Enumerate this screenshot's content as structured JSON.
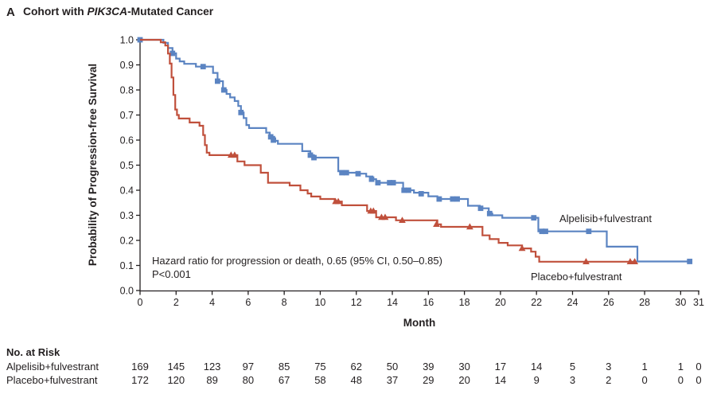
{
  "title": {
    "panel": "A",
    "part1": "Cohort with ",
    "part2_italic": "PIK3CA",
    "part3": "-Mutated Cancer"
  },
  "axes": {
    "y_label": "Probability of Progression-free Survival",
    "x_label": "Month",
    "y_ticks": [
      "1.0",
      "0.9",
      "0.8",
      "0.7",
      "0.6",
      "0.5",
      "0.4",
      "0.3",
      "0.2",
      "0.1",
      "0.0"
    ],
    "x_ticks": [
      0,
      2,
      4,
      6,
      8,
      10,
      12,
      14,
      16,
      18,
      20,
      22,
      24,
      26,
      28,
      30,
      31
    ]
  },
  "annotation": {
    "line1": "Hazard ratio for progression or death, 0.65 (95% CI, 0.50–0.85)",
    "line2": "P<0.001"
  },
  "chart_data": {
    "type": "line",
    "subtype": "kaplan-meier-step",
    "title": "Cohort with PIK3CA-Mutated Cancer",
    "xlabel": "Month",
    "ylabel": "Probability of Progression-free Survival",
    "xlim": [
      0,
      31
    ],
    "ylim": [
      0.0,
      1.0
    ],
    "grid": false,
    "series": [
      {
        "name": "Alpelisib+fulvestrant",
        "color": "#5b84c2",
        "marker": "square",
        "end_month": 30.55,
        "steps": [
          [
            0,
            1.0
          ],
          [
            1.3,
            0.988
          ],
          [
            1.55,
            0.967
          ],
          [
            1.8,
            0.946
          ],
          [
            2.0,
            0.925
          ],
          [
            2.2,
            0.914
          ],
          [
            2.45,
            0.904
          ],
          [
            3.1,
            0.893
          ],
          [
            4.05,
            0.868
          ],
          [
            4.3,
            0.835
          ],
          [
            4.6,
            0.8
          ],
          [
            4.8,
            0.784
          ],
          [
            5.0,
            0.77
          ],
          [
            5.25,
            0.756
          ],
          [
            5.45,
            0.736
          ],
          [
            5.6,
            0.71
          ],
          [
            5.75,
            0.688
          ],
          [
            5.9,
            0.66
          ],
          [
            6.05,
            0.648
          ],
          [
            7.0,
            0.63
          ],
          [
            7.2,
            0.613
          ],
          [
            7.45,
            0.597
          ],
          [
            7.65,
            0.585
          ],
          [
            9.0,
            0.556
          ],
          [
            9.45,
            0.54
          ],
          [
            9.65,
            0.53
          ],
          [
            11.0,
            0.476
          ],
          [
            11.35,
            0.47
          ],
          [
            12.1,
            0.466
          ],
          [
            12.55,
            0.455
          ],
          [
            12.9,
            0.444
          ],
          [
            13.1,
            0.43
          ],
          [
            14.6,
            0.4
          ],
          [
            15.2,
            0.39
          ],
          [
            16.0,
            0.376
          ],
          [
            16.5,
            0.365
          ],
          [
            18.2,
            0.338
          ],
          [
            18.85,
            0.328
          ],
          [
            19.35,
            0.307
          ],
          [
            19.55,
            0.3
          ],
          [
            20.1,
            0.29
          ],
          [
            22.1,
            0.236
          ],
          [
            25.9,
            0.175
          ],
          [
            27.6,
            0.116
          ]
        ],
        "censors": [
          [
            0,
            1.0
          ],
          [
            1.8,
            0.946
          ],
          [
            3.5,
            0.893
          ],
          [
            4.3,
            0.835
          ],
          [
            4.65,
            0.8
          ],
          [
            5.6,
            0.71
          ],
          [
            7.25,
            0.613
          ],
          [
            7.4,
            0.6
          ],
          [
            9.45,
            0.54
          ],
          [
            9.65,
            0.53
          ],
          [
            11.2,
            0.47
          ],
          [
            11.45,
            0.47
          ],
          [
            12.1,
            0.466
          ],
          [
            12.85,
            0.444
          ],
          [
            13.2,
            0.43
          ],
          [
            13.85,
            0.43
          ],
          [
            14.05,
            0.43
          ],
          [
            14.65,
            0.4
          ],
          [
            14.9,
            0.4
          ],
          [
            15.6,
            0.386
          ],
          [
            16.6,
            0.365
          ],
          [
            17.35,
            0.365
          ],
          [
            17.6,
            0.365
          ],
          [
            18.9,
            0.328
          ],
          [
            19.4,
            0.307
          ],
          [
            21.85,
            0.29
          ],
          [
            22.3,
            0.236
          ],
          [
            22.5,
            0.236
          ],
          [
            24.9,
            0.236
          ],
          [
            30.5,
            0.116
          ]
        ]
      },
      {
        "name": "Placebo+fulvestrant",
        "color": "#c0503c",
        "marker": "triangle",
        "end_month": 27.5,
        "steps": [
          [
            0,
            1.0
          ],
          [
            1.15,
            0.99
          ],
          [
            1.4,
            0.977
          ],
          [
            1.55,
            0.945
          ],
          [
            1.65,
            0.905
          ],
          [
            1.75,
            0.85
          ],
          [
            1.85,
            0.78
          ],
          [
            1.95,
            0.722
          ],
          [
            2.05,
            0.7
          ],
          [
            2.15,
            0.686
          ],
          [
            2.75,
            0.67
          ],
          [
            3.3,
            0.657
          ],
          [
            3.5,
            0.62
          ],
          [
            3.6,
            0.58
          ],
          [
            3.7,
            0.55
          ],
          [
            3.85,
            0.54
          ],
          [
            5.4,
            0.515
          ],
          [
            5.8,
            0.5
          ],
          [
            6.7,
            0.47
          ],
          [
            7.1,
            0.43
          ],
          [
            8.3,
            0.419
          ],
          [
            8.9,
            0.4
          ],
          [
            9.3,
            0.387
          ],
          [
            9.5,
            0.375
          ],
          [
            10.0,
            0.365
          ],
          [
            10.8,
            0.355
          ],
          [
            11.2,
            0.34
          ],
          [
            12.6,
            0.317
          ],
          [
            13.1,
            0.292
          ],
          [
            14.2,
            0.28
          ],
          [
            16.5,
            0.264
          ],
          [
            16.7,
            0.254
          ],
          [
            19.0,
            0.22
          ],
          [
            19.4,
            0.205
          ],
          [
            19.9,
            0.19
          ],
          [
            20.4,
            0.18
          ],
          [
            21.2,
            0.168
          ],
          [
            21.7,
            0.155
          ],
          [
            21.95,
            0.135
          ],
          [
            22.15,
            0.115
          ]
        ],
        "censors": [
          [
            5.05,
            0.54
          ],
          [
            5.25,
            0.54
          ],
          [
            10.85,
            0.355
          ],
          [
            11.0,
            0.355
          ],
          [
            12.8,
            0.317
          ],
          [
            12.95,
            0.317
          ],
          [
            13.4,
            0.292
          ],
          [
            13.6,
            0.292
          ],
          [
            14.55,
            0.28
          ],
          [
            16.45,
            0.264
          ],
          [
            18.3,
            0.254
          ],
          [
            21.2,
            0.168
          ],
          [
            24.75,
            0.115
          ],
          [
            27.2,
            0.115
          ],
          [
            27.45,
            0.115
          ]
        ]
      }
    ],
    "annotations": [
      "Hazard ratio for progression or death, 0.65 (95% CI, 0.50–0.85)",
      "P<0.001"
    ]
  },
  "risk_table": {
    "header": "No. at Risk",
    "months": [
      0,
      2,
      4,
      6,
      8,
      10,
      12,
      14,
      16,
      18,
      20,
      22,
      24,
      26,
      28,
      30,
      31
    ],
    "rows": [
      {
        "label": "Alpelisib+fulvestrant",
        "values": [
          169,
          145,
          123,
          97,
          85,
          75,
          62,
          50,
          39,
          30,
          17,
          14,
          5,
          3,
          1,
          1,
          0
        ]
      },
      {
        "label": "Placebo+fulvestrant",
        "values": [
          172,
          120,
          89,
          80,
          67,
          58,
          48,
          37,
          29,
          20,
          14,
          9,
          3,
          2,
          0,
          0,
          0
        ]
      }
    ]
  },
  "colors": {
    "alpelisib": "#5b84c2",
    "placebo": "#c0503c",
    "axis": "#231f20",
    "text": "#231f20"
  }
}
